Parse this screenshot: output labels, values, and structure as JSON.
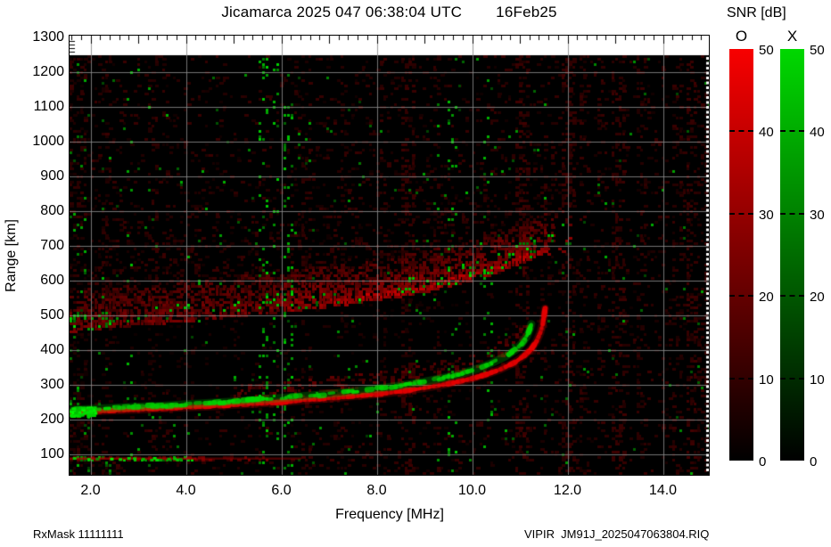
{
  "title": {
    "main": "Jicamarca 2025 047 06:38:04 UTC",
    "date": "16Feb25",
    "station": "Jicamarca",
    "year": "2025",
    "day_of_year": "047",
    "time_utc": "06:38:04"
  },
  "footer": {
    "left": "RxMask 11111111",
    "right": "VIPIR  JM91J_2025047063804.RIQ"
  },
  "colorbar_panel": {
    "title": "SNR [dB]",
    "min": 0,
    "max": 50,
    "ticks": [
      {
        "v": 50,
        "label": "50"
      },
      {
        "v": 40,
        "label": "40"
      },
      {
        "v": 30,
        "label": "30"
      },
      {
        "v": 20,
        "label": "20"
      },
      {
        "v": 10,
        "label": "10"
      },
      {
        "v": 0,
        "label": "0"
      }
    ],
    "bars": [
      {
        "label": "O",
        "top_color": "#f80000"
      },
      {
        "label": "X",
        "top_color": "#00d800"
      }
    ]
  },
  "axes": {
    "x": {
      "label": "Frequency [MHz]",
      "min": 1.57,
      "max": 15.0,
      "ticks": [
        {
          "v": 2,
          "label": "2.0"
        },
        {
          "v": 4,
          "label": "4.0"
        },
        {
          "v": 6,
          "label": "6.0"
        },
        {
          "v": 8,
          "label": "8.0"
        },
        {
          "v": 10,
          "label": "10.0"
        },
        {
          "v": 12,
          "label": "12.0"
        },
        {
          "v": 14,
          "label": "14.0"
        }
      ]
    },
    "y": {
      "label": "Range [km]",
      "min": 40,
      "max": 1300,
      "data_top": 1250,
      "ticks": [
        {
          "v": 100,
          "label": "100"
        },
        {
          "v": 200,
          "label": "200"
        },
        {
          "v": 300,
          "label": "300"
        },
        {
          "v": 400,
          "label": "400"
        },
        {
          "v": 500,
          "label": "500"
        },
        {
          "v": 600,
          "label": "600"
        },
        {
          "v": 700,
          "label": "700"
        },
        {
          "v": 800,
          "label": "800"
        },
        {
          "v": 900,
          "label": "900"
        },
        {
          "v": 1000,
          "label": "1000"
        },
        {
          "v": 1100,
          "label": "1100"
        },
        {
          "v": 1200,
          "label": "1200"
        },
        {
          "v": 1300,
          "label": "1300"
        }
      ]
    }
  },
  "chart_data": {
    "type": "heatmap",
    "description": "VIPIR HF ionogram: echo SNR [dB] vs frequency [MHz] and virtual range [km]. O-mode echoes red, X-mode echoes green on black background. Sharp F-layer trace rises from ~220 km at 1.6 MHz and asymptotes near 11.5 MHz at ~500 km; diffuse spread-F band with sharp lower edge rises from ~460 km to ~690 km; weak E-region echo near 88 km below 6.5 MHz; vertical RFI stripes.",
    "grid_color": "#8a8a8a",
    "o_trace_color": "#e60000",
    "x_trace_color": "#00d400",
    "snr_range_db": [
      0,
      50
    ],
    "o_trace": [
      [
        1.57,
        220
      ],
      [
        2.0,
        223
      ],
      [
        2.5,
        226
      ],
      [
        3.0,
        229
      ],
      [
        3.5,
        232
      ],
      [
        4.0,
        235
      ],
      [
        4.5,
        238
      ],
      [
        5.0,
        242
      ],
      [
        5.5,
        246
      ],
      [
        6.0,
        250
      ],
      [
        6.5,
        256
      ],
      [
        7.0,
        261
      ],
      [
        7.5,
        267
      ],
      [
        8.0,
        273
      ],
      [
        8.5,
        281
      ],
      [
        9.0,
        291
      ],
      [
        9.5,
        303
      ],
      [
        10.0,
        318
      ],
      [
        10.3,
        330
      ],
      [
        10.6,
        345
      ],
      [
        10.9,
        365
      ],
      [
        11.1,
        385
      ],
      [
        11.25,
        405
      ],
      [
        11.35,
        425
      ],
      [
        11.43,
        450
      ],
      [
        11.48,
        475
      ],
      [
        11.51,
        500
      ],
      [
        11.53,
        520
      ]
    ],
    "x_trace": [
      [
        1.57,
        228
      ],
      [
        2.0,
        231
      ],
      [
        2.5,
        234
      ],
      [
        3.0,
        237
      ],
      [
        3.5,
        240
      ],
      [
        4.0,
        244
      ],
      [
        4.5,
        248
      ],
      [
        5.0,
        252
      ],
      [
        5.5,
        257
      ],
      [
        6.0,
        262
      ],
      [
        6.5,
        268
      ],
      [
        7.0,
        274
      ],
      [
        7.5,
        281
      ],
      [
        8.0,
        289
      ],
      [
        8.5,
        298
      ],
      [
        9.0,
        309
      ],
      [
        9.5,
        323
      ],
      [
        9.8,
        333
      ],
      [
        10.1,
        346
      ],
      [
        10.4,
        362
      ],
      [
        10.7,
        382
      ],
      [
        10.9,
        400
      ],
      [
        11.05,
        420
      ],
      [
        11.15,
        440
      ],
      [
        11.21,
        460
      ],
      [
        11.24,
        475
      ]
    ],
    "e_layer_echo": {
      "range_km": 88,
      "f_start": 1.57,
      "f_end": 6.4
    },
    "spread_f_band": {
      "lower_edge": [
        [
          1.57,
          462
        ],
        [
          3.0,
          480
        ],
        [
          5.0,
          505
        ],
        [
          7.0,
          534
        ],
        [
          8.0,
          552
        ],
        [
          9.0,
          576
        ],
        [
          10.0,
          610
        ],
        [
          10.5,
          632
        ],
        [
          11.0,
          658
        ],
        [
          11.4,
          680
        ],
        [
          12.0,
          694
        ],
        [
          12.4,
          700
        ]
      ],
      "thickness_km": 110
    },
    "rfi_stripes": [
      {
        "f": 2.35,
        "color": "red",
        "strength": 0.25,
        "w": 0.1
      },
      {
        "f": 2.8,
        "color": "green",
        "strength": 0.2,
        "w": 0.08
      },
      {
        "f": 3.3,
        "color": "red",
        "strength": 0.2,
        "w": 0.1
      },
      {
        "f": 5.65,
        "color": "green",
        "strength": 0.5,
        "w": 0.1
      },
      {
        "f": 5.9,
        "color": "green",
        "strength": 0.4,
        "w": 0.08
      },
      {
        "f": 6.15,
        "color": "green",
        "strength": 0.5,
        "w": 0.1
      },
      {
        "f": 6.55,
        "color": "red",
        "strength": 0.2,
        "w": 0.1
      },
      {
        "f": 7.3,
        "color": "red",
        "strength": 0.15,
        "w": 0.1
      },
      {
        "f": 8.1,
        "color": "red",
        "strength": 0.2,
        "w": 0.1
      },
      {
        "f": 8.65,
        "color": "red",
        "strength": 0.45,
        "w": 0.14
      },
      {
        "f": 9.25,
        "color": "red",
        "strength": 0.25,
        "w": 0.1
      },
      {
        "f": 9.6,
        "color": "green",
        "strength": 0.25,
        "w": 0.08
      },
      {
        "f": 10.35,
        "color": "green",
        "strength": 0.2,
        "w": 0.08
      },
      {
        "f": 11.08,
        "color": "red",
        "strength": 0.5,
        "w": 0.14
      },
      {
        "f": 11.5,
        "color": "red",
        "strength": 0.2,
        "w": 0.1
      },
      {
        "f": 12.05,
        "color": "red",
        "strength": 0.45,
        "w": 0.14
      },
      {
        "f": 12.35,
        "color": "red",
        "strength": 0.2,
        "w": 0.1
      },
      {
        "f": 12.7,
        "color": "red",
        "strength": 0.25,
        "w": 0.1
      },
      {
        "f": 13.05,
        "color": "red",
        "strength": 0.45,
        "w": 0.14
      },
      {
        "f": 13.55,
        "color": "red",
        "strength": 0.2,
        "w": 0.1
      },
      {
        "f": 14.3,
        "color": "red",
        "strength": 0.25,
        "w": 0.1
      },
      {
        "f": 14.6,
        "color": "red",
        "strength": 0.5,
        "w": 0.14
      },
      {
        "f": 14.85,
        "color": "red",
        "strength": 0.3,
        "w": 0.1
      }
    ]
  }
}
